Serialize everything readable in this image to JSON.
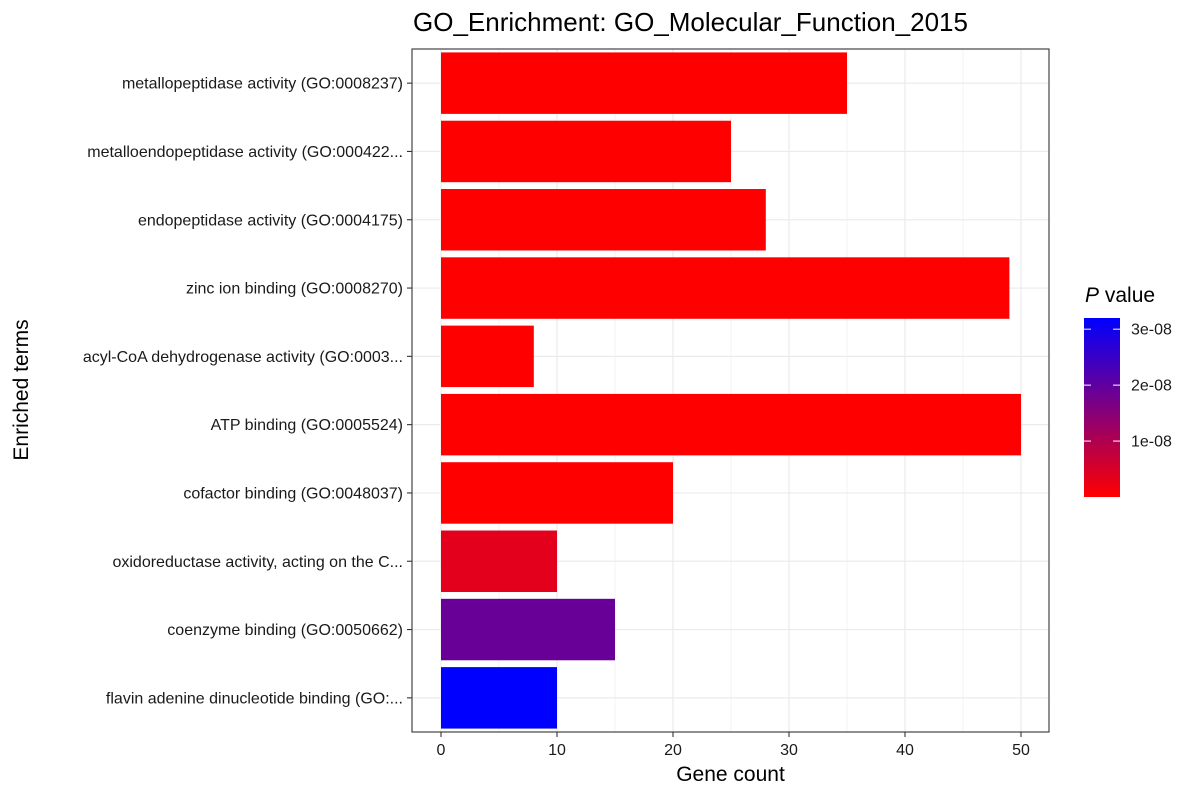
{
  "chart_data": {
    "type": "bar",
    "orientation": "horizontal",
    "title": "GO_Enrichment: GO_Molecular_Function_2015",
    "xlabel": "Gene count",
    "ylabel": "Enriched terms",
    "xlim": [
      0,
      52.5
    ],
    "xticks": [
      0,
      10,
      20,
      30,
      40,
      50
    ],
    "grid": true,
    "categories": [
      "metallopeptidase activity (GO:0008237)",
      "metalloendopeptidase activity (GO:000422...",
      "endopeptidase activity (GO:0004175)",
      "zinc ion binding (GO:0008270)",
      "acyl-CoA dehydrogenase activity (GO:0003...",
      "ATP binding (GO:0005524)",
      "cofactor binding (GO:0048037)",
      "oxidoreductase activity, acting on the C...",
      "coenzyme binding (GO:0050662)",
      "flavin adenine dinucleotide binding (GO:..."
    ],
    "values": [
      35,
      25,
      28,
      49,
      8,
      50,
      20,
      10,
      15,
      10
    ],
    "p_values": [
      1e-11,
      1e-11,
      1e-11,
      1e-11,
      1e-11,
      1e-11,
      1e-11,
      3.5e-09,
      1.9e-08,
      3.2e-08
    ],
    "legend": {
      "title_italic": "P",
      "title_rest": " value",
      "position": "right",
      "colormap": [
        "#ff0000",
        "#0000ff"
      ],
      "range": [
        0,
        3.2e-08
      ],
      "tick_values": [
        1e-08,
        2e-08,
        3e-08
      ],
      "tick_labels": [
        "1e-08",
        "2e-08",
        "3e-08"
      ]
    }
  }
}
